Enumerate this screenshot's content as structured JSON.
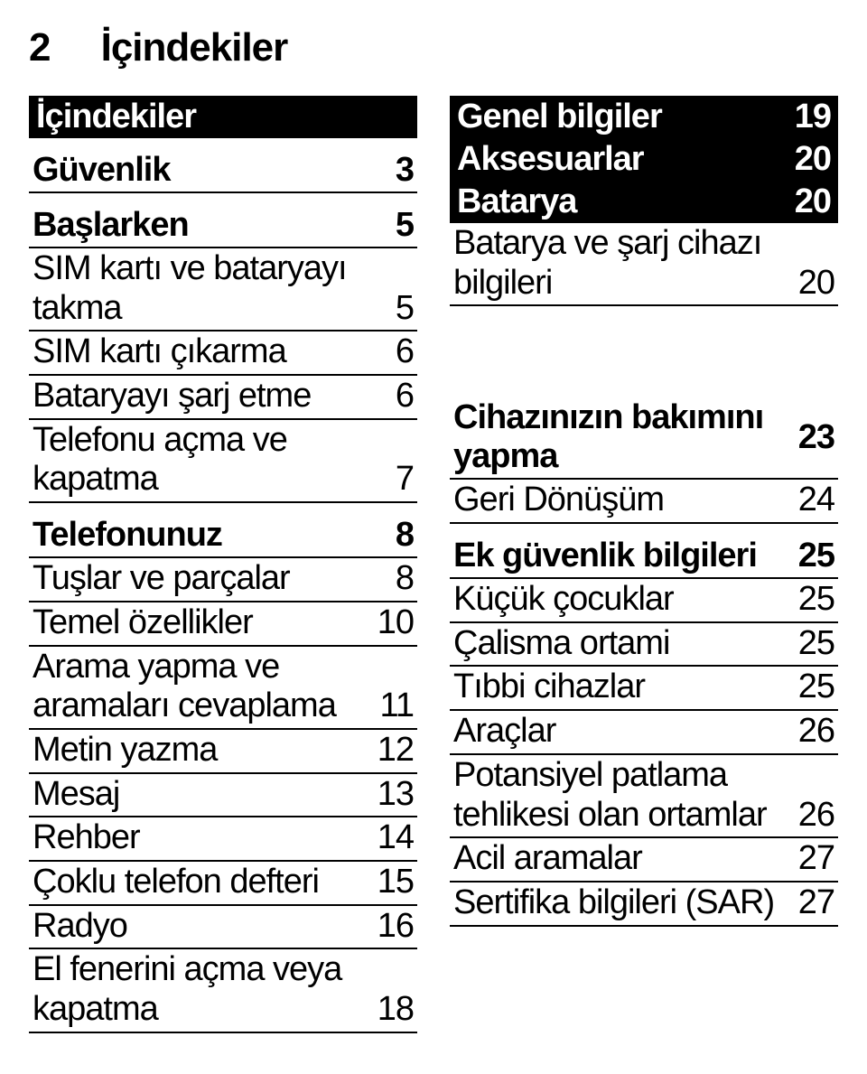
{
  "page_header": {
    "num": "2",
    "title": "İçindekiler"
  },
  "left": {
    "title_block": {
      "label": "İçindekiler"
    },
    "sections": [
      {
        "head": {
          "label": "Güvenlik",
          "page": "3"
        },
        "entries": []
      },
      {
        "head": {
          "label": "Başlarken",
          "page": "5"
        },
        "entries": [
          {
            "label": "SIM kartı ve bataryayı takma",
            "page": "5"
          },
          {
            "label": "SIM kartı çıkarma",
            "page": "6"
          },
          {
            "label": "Bataryayı şarj etme",
            "page": "6"
          },
          {
            "label": "Telefonu açma ve kapatma",
            "page": "7"
          }
        ]
      },
      {
        "head": {
          "label": "Telefonunuz",
          "page": "8"
        },
        "entries": [
          {
            "label": "Tuşlar ve parçalar",
            "page": "8"
          },
          {
            "label": "Temel özellikler",
            "page": "10"
          },
          {
            "label": "Arama yapma ve aramaları cevaplama",
            "page": "11"
          },
          {
            "label": "Metin yazma",
            "page": "12"
          },
          {
            "label": "Mesaj",
            "page": "13"
          },
          {
            "label": "Rehber",
            "page": "14"
          },
          {
            "label": "Çoklu telefon defteri",
            "page": "15"
          },
          {
            "label": "Radyo",
            "page": "16"
          },
          {
            "label": "El fenerini açma veya kapatma",
            "page": "18"
          }
        ]
      }
    ]
  },
  "right": {
    "sections": [
      {
        "head": {
          "label": "Genel bilgiler",
          "page": "19"
        },
        "entries": []
      },
      {
        "head": {
          "label": "Aksesuarlar",
          "page": "20"
        },
        "entries": []
      },
      {
        "head": {
          "label": "Batarya",
          "page": "20"
        },
        "entries": [
          {
            "label": "Batarya ve şarj cihazı bilgileri",
            "page": "20"
          }
        ]
      },
      {
        "head": {
          "label": "Cihazınızın bakımını yapma",
          "page": "23"
        },
        "entries": [
          {
            "label": "Geri Dönüşüm",
            "page": "24"
          }
        ]
      },
      {
        "head": {
          "label": "Ek güvenlik bilgileri",
          "page": "25"
        },
        "entries": [
          {
            "label": "Küçük çocuklar",
            "page": "25"
          },
          {
            "label": "Çalisma ortami",
            "page": "25"
          },
          {
            "label": "Tıbbi cihazlar",
            "page": "25"
          },
          {
            "label": "Araçlar",
            "page": "26"
          },
          {
            "label": "Potansiyel patlama tehlikesi olan ortamlar",
            "page": "26"
          },
          {
            "label": "Acil aramalar",
            "page": "27"
          },
          {
            "label": "Sertifika bilgileri (SAR)",
            "page": "27"
          }
        ]
      }
    ]
  }
}
